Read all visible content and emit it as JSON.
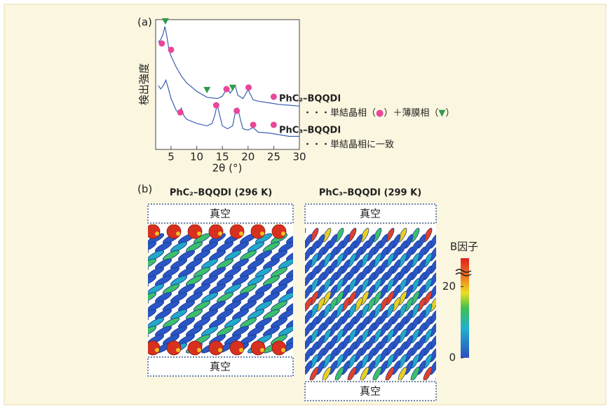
{
  "chart_data": {
    "type": "line",
    "panel_label": "(a)",
    "ylabel": "検出強度",
    "xlabel": "2θ (°)",
    "xlim": [
      2,
      30
    ],
    "xticks": [
      5,
      10,
      15,
      20,
      25,
      30
    ],
    "ylim": [
      1,
      1000
    ],
    "yscale": "log",
    "series": [
      {
        "name": "PhC₂–BQQDI",
        "color": "#3a5fb0",
        "x": [
          2.5,
          3,
          3.4,
          3.8,
          4.2,
          4.6,
          5,
          6,
          7,
          8,
          10,
          12,
          14,
          15,
          16,
          16.5,
          17,
          17.5,
          18,
          19,
          20,
          21,
          22,
          24,
          26,
          28,
          30
        ],
        "values": [
          300,
          350,
          450,
          690,
          400,
          200,
          144,
          80,
          50,
          35,
          22,
          16,
          15,
          17,
          27,
          20,
          24,
          30,
          18,
          15,
          24,
          14,
          13,
          12,
          11,
          10.5,
          10
        ],
        "note": [
          {
            "text": "・・・単結晶相（"
          },
          {
            "text": "●",
            "color": "#e8479a"
          },
          {
            "text": "）＋薄膜相（"
          },
          {
            "text": "▼",
            "color": "#2f9a48"
          },
          {
            "text": "）"
          }
        ]
      },
      {
        "name": "PhC₃–BQQDI",
        "color": "#3a5fb0",
        "x": [
          2.5,
          3,
          3.5,
          4,
          4.5,
          5,
          6,
          6.5,
          7,
          7.5,
          8,
          10,
          12,
          13,
          13.5,
          14,
          14.5,
          15,
          16,
          17,
          17.5,
          18,
          18.5,
          19,
          20,
          21,
          22,
          24,
          26,
          28,
          30
        ],
        "values": [
          30,
          25,
          30,
          40,
          25,
          15,
          8,
          7,
          9,
          6,
          5,
          4,
          3.5,
          4,
          6,
          11,
          6,
          3.5,
          3,
          3.5,
          7,
          9,
          5,
          3,
          2.8,
          3.2,
          2.5,
          2.4,
          2.2,
          2.0,
          2.0
        ],
        "note": [
          {
            "text": "・・・単結晶相に一致"
          }
        ]
      }
    ],
    "marker_colors": {
      "circle": "#e8479a",
      "triangle": "#2f9a48"
    },
    "markers": [
      {
        "shape": "circle",
        "x": 3.2,
        "y": 281
      },
      {
        "shape": "circle",
        "x": 5.0,
        "y": 201
      },
      {
        "shape": "circle",
        "x": 15.8,
        "y": 24.8
      },
      {
        "shape": "circle",
        "x": 20.1,
        "y": 27
      },
      {
        "shape": "circle",
        "x": 25,
        "y": 16.5
      },
      {
        "shape": "triangle",
        "x": 3.9,
        "y": 929
      },
      {
        "shape": "triangle",
        "x": 12,
        "y": 24
      },
      {
        "shape": "triangle",
        "x": 17,
        "y": 27
      },
      {
        "shape": "circle",
        "x": 6.8,
        "y": 7.2
      },
      {
        "shape": "circle",
        "x": 13.8,
        "y": 10.5
      },
      {
        "shape": "circle",
        "x": 17.8,
        "y": 7.8
      },
      {
        "shape": "circle",
        "x": 21,
        "y": 3.7
      },
      {
        "shape": "circle",
        "x": 25,
        "y": 3.7
      }
    ]
  },
  "panel_b": {
    "label": "(b)",
    "structures": [
      {
        "title": "PhC₂–BQQDI (296 K)",
        "vacuum_top": "真空",
        "vacuum_bottom": "真空"
      },
      {
        "title": "PhC₃–BQQDI (299 K)",
        "vacuum_top": "真空",
        "vacuum_bottom": "真空"
      }
    ],
    "colorbar": {
      "label": "B因子",
      "lim": [
        0,
        28
      ],
      "ticks": [
        0,
        20
      ]
    }
  }
}
